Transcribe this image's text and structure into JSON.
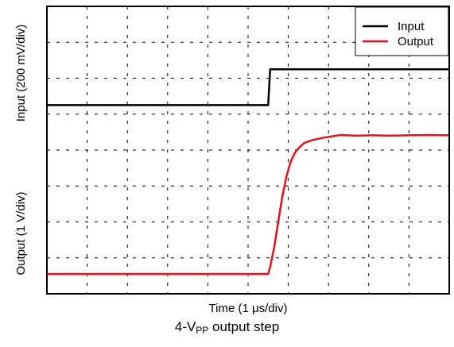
{
  "chart_data": {
    "type": "line",
    "xlabel_prefix": "Time (1 ",
    "xlabel_unit": "μs/div)",
    "ylabel_upper": "Input (200 mV/div)",
    "ylabel_lower": "Output (1  V/div)",
    "grid": true,
    "x_divisions": 10,
    "y_divisions": 8,
    "legend_position": "top-right",
    "series": [
      {
        "name": "Input",
        "color": "#000000",
        "x": [
          0,
          5.5,
          5.55,
          10
        ],
        "y": [
          5.25,
          5.25,
          6.25,
          6.25
        ]
      },
      {
        "name": "Output",
        "color": "#e8101a",
        "x": [
          0,
          5.5,
          5.55,
          5.65,
          5.75,
          5.85,
          5.95,
          6.05,
          6.15,
          6.25,
          6.4,
          6.6,
          6.9,
          7.3,
          7.7,
          8.1,
          8.5,
          9.0,
          9.5,
          10
        ],
        "y": [
          0.55,
          0.55,
          0.75,
          1.3,
          2.0,
          2.7,
          3.25,
          3.65,
          3.9,
          4.05,
          4.2,
          4.28,
          4.35,
          4.42,
          4.4,
          4.41,
          4.4,
          4.41,
          4.42,
          4.41
        ]
      }
    ]
  },
  "caption": {
    "prefix": "4-V",
    "sub": "PP",
    "suffix": " output step"
  }
}
